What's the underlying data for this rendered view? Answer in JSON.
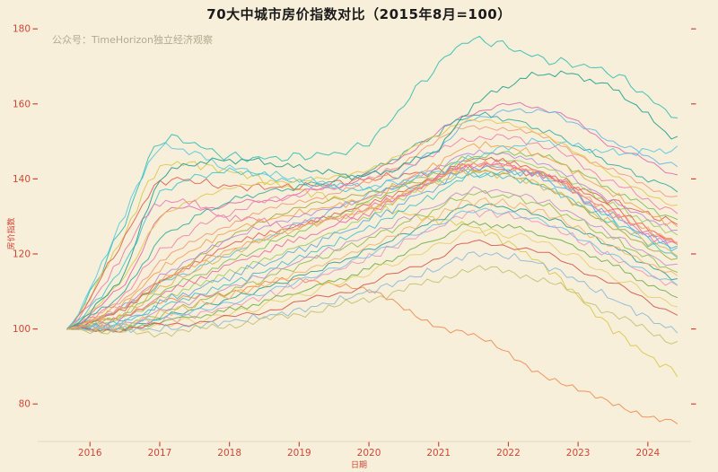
{
  "chart_data": {
    "type": "line",
    "title": "70大中城市房价指数对比（2015年8月=100）",
    "watermark": "公众号：TimeHorizon独立经济观察",
    "xlabel": "日期",
    "ylabel": "房价指数",
    "x_ticks": [
      2016,
      2017,
      2018,
      2019,
      2020,
      2021,
      2022,
      2023,
      2024
    ],
    "y_ticks": [
      80,
      100,
      120,
      140,
      160,
      180
    ],
    "xlim": [
      2015.25,
      2024.62
    ],
    "ylim": [
      70,
      181
    ],
    "grid": false,
    "legend": "none",
    "colors": {
      "background": "#f8efda",
      "axis": "#cf4637",
      "title": "#1a1a1a",
      "watermark": "#b3a98f"
    },
    "x_keypoints": [
      2015.67,
      2016.5,
      2017,
      2018,
      2019,
      2020,
      2021,
      2021.5,
      2022.5,
      2023.5,
      2024.5
    ],
    "series": [
      {
        "color": "#2fbdb3",
        "values": [
          100,
          128,
          150,
          146,
          146,
          150,
          170,
          177,
          172,
          168,
          156
        ]
      },
      {
        "color": "#d8c84a",
        "values": [
          100,
          125,
          143,
          142,
          137,
          133,
          129,
          127,
          117,
          100,
          88
        ]
      },
      {
        "color": "#ef8a4e",
        "values": [
          100,
          104,
          107,
          110,
          113,
          110,
          101,
          98,
          88,
          80,
          75
        ]
      },
      {
        "color": "#dd5f55",
        "values": [
          100,
          124,
          139,
          138,
          138,
          140,
          142,
          143,
          141,
          134,
          128
        ]
      },
      {
        "color": "#e06aa8",
        "values": [
          100,
          112,
          130,
          133,
          136,
          141,
          152,
          158,
          159,
          149,
          141
        ]
      },
      {
        "color": "#5fb7e6",
        "values": [
          100,
          106,
          112,
          120,
          128,
          136,
          148,
          156,
          158,
          150,
          143
        ]
      },
      {
        "color": "#7fbf55",
        "values": [
          100,
          104,
          110,
          118,
          126,
          134,
          142,
          146,
          146,
          137,
          129
        ]
      },
      {
        "color": "#ef7fae",
        "values": [
          100,
          109,
          121,
          131,
          136,
          140,
          147,
          151,
          149,
          139,
          131
        ]
      },
      {
        "color": "#a8a93e",
        "values": [
          100,
          105,
          112,
          124,
          132,
          136,
          140,
          142,
          138,
          127,
          118
        ]
      },
      {
        "color": "#3fc3cf",
        "values": [
          100,
          117,
          136,
          142,
          139,
          137,
          139,
          141,
          141,
          129,
          121
        ]
      },
      {
        "color": "#f09a78",
        "values": [
          100,
          108,
          118,
          128,
          134,
          139,
          150,
          154,
          151,
          142,
          135
        ]
      },
      {
        "color": "#9ccc62",
        "values": [
          100,
          103,
          108,
          115,
          122,
          130,
          140,
          145,
          143,
          133,
          125
        ]
      },
      {
        "color": "#b78bd8",
        "values": [
          100,
          106,
          114,
          124,
          130,
          135,
          143,
          147,
          144,
          134,
          126
        ]
      },
      {
        "color": "#35a8a0",
        "values": [
          100,
          110,
          124,
          134,
          138,
          142,
          152,
          157,
          153,
          144,
          137
        ]
      },
      {
        "color": "#e6c44e",
        "values": [
          100,
          114,
          130,
          138,
          140,
          143,
          152,
          156,
          152,
          141,
          132
        ]
      },
      {
        "color": "#f2a254",
        "values": [
          100,
          107,
          116,
          126,
          131,
          135,
          144,
          149,
          146,
          136,
          127
        ]
      },
      {
        "color": "#ea6a9c",
        "values": [
          100,
          103,
          109,
          117,
          124,
          131,
          140,
          144,
          141,
          131,
          122
        ]
      },
      {
        "color": "#62a8e0",
        "values": [
          100,
          102,
          107,
          114,
          121,
          129,
          138,
          143,
          140,
          130,
          121
        ]
      },
      {
        "color": "#8fbf4f",
        "values": [
          100,
          101,
          104,
          110,
          117,
          124,
          132,
          136,
          133,
          124,
          115
        ]
      },
      {
        "color": "#e0625a",
        "values": [
          100,
          105,
          113,
          122,
          128,
          133,
          141,
          145,
          142,
          132,
          123
        ]
      },
      {
        "color": "#45c0c8",
        "values": [
          100,
          102,
          106,
          112,
          119,
          127,
          136,
          141,
          138,
          128,
          119
        ]
      },
      {
        "color": "#d8b45a",
        "values": [
          100,
          104,
          111,
          120,
          127,
          132,
          139,
          142,
          138,
          128,
          120
        ]
      },
      {
        "color": "#c490c8",
        "values": [
          100,
          101,
          105,
          111,
          118,
          125,
          133,
          137,
          134,
          125,
          116
        ]
      },
      {
        "color": "#2f9e96",
        "values": [
          100,
          100,
          103,
          108,
          114,
          121,
          129,
          133,
          130,
          122,
          113
        ]
      },
      {
        "color": "#f2b06a",
        "values": [
          100,
          101,
          104,
          109,
          115,
          122,
          130,
          134,
          131,
          122,
          114
        ]
      },
      {
        "color": "#f093b8",
        "values": [
          100,
          100,
          102,
          106,
          112,
          119,
          127,
          131,
          128,
          119,
          111
        ]
      },
      {
        "color": "#74c0e8",
        "values": [
          100,
          101,
          103,
          107,
          113,
          120,
          128,
          132,
          129,
          120,
          112
        ]
      },
      {
        "color": "#6fae48",
        "values": [
          100,
          100,
          102,
          105,
          110,
          116,
          124,
          128,
          125,
          117,
          108
        ]
      },
      {
        "color": "#e3cf6a",
        "values": [
          100,
          100,
          101,
          104,
          109,
          115,
          122,
          126,
          123,
          114,
          106
        ]
      },
      {
        "color": "#d4544c",
        "values": [
          100,
          100,
          101,
          103,
          107,
          112,
          119,
          123,
          120,
          112,
          104
        ]
      },
      {
        "color": "#8ab8d8",
        "values": [
          100,
          100,
          100,
          102,
          105,
          110,
          116,
          120,
          117,
          108,
          99
        ]
      },
      {
        "color": "#c0c070",
        "values": [
          100,
          99,
          99,
          101,
          104,
          108,
          113,
          116,
          113,
          104,
          96
        ]
      },
      {
        "color": "#e87ab0",
        "values": [
          100,
          120,
          134,
          130,
          128,
          132,
          140,
          144,
          141,
          130,
          122
        ]
      },
      {
        "color": "#58c8e0",
        "values": [
          100,
          130,
          148,
          143,
          140,
          138,
          142,
          146,
          150,
          147,
          148
        ]
      },
      {
        "color": "#1f9e8e",
        "values": [
          100,
          115,
          140,
          145,
          143,
          141,
          148,
          160,
          168,
          164,
          150
        ]
      },
      {
        "color": "#f4a25e",
        "values": [
          100,
          106,
          113,
          121,
          127,
          132,
          140,
          144,
          141,
          131,
          123
        ]
      }
    ]
  }
}
